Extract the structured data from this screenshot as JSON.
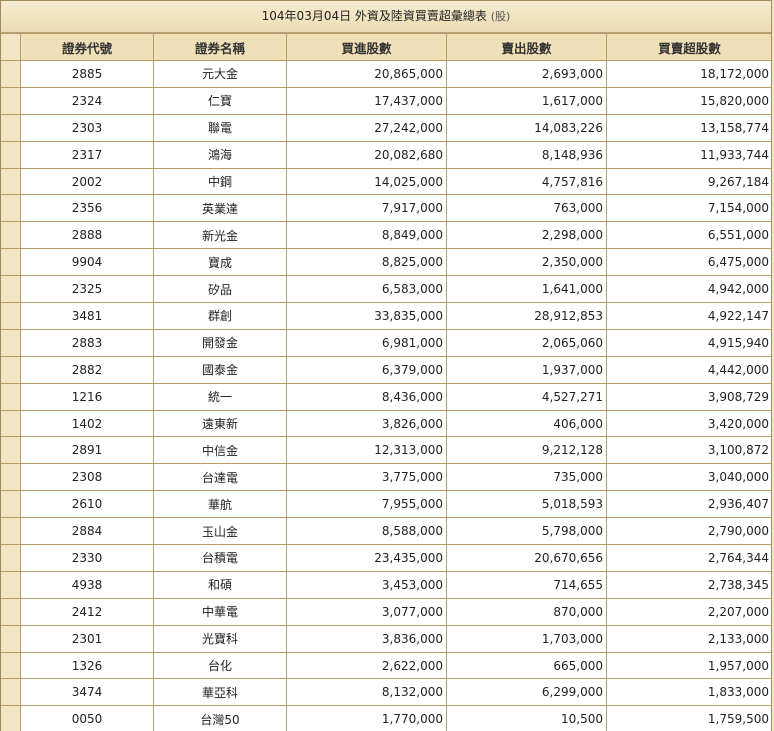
{
  "title": {
    "text": "104年03月04日 外資及陸資買賣超彙總表",
    "unit": "(股)"
  },
  "headers": [
    "證券代號",
    "證券名稱",
    "買進股數",
    "賣出股數",
    "買賣超股數"
  ],
  "rows": [
    {
      "code": "2885",
      "name": "元大金",
      "buy": "20,865,000",
      "sell": "2,693,000",
      "net": "18,172,000"
    },
    {
      "code": "2324",
      "name": "仁寶",
      "buy": "17,437,000",
      "sell": "1,617,000",
      "net": "15,820,000"
    },
    {
      "code": "2303",
      "name": "聯電",
      "buy": "27,242,000",
      "sell": "14,083,226",
      "net": "13,158,774"
    },
    {
      "code": "2317",
      "name": "鴻海",
      "buy": "20,082,680",
      "sell": "8,148,936",
      "net": "11,933,744"
    },
    {
      "code": "2002",
      "name": "中鋼",
      "buy": "14,025,000",
      "sell": "4,757,816",
      "net": "9,267,184"
    },
    {
      "code": "2356",
      "name": "英業達",
      "buy": "7,917,000",
      "sell": "763,000",
      "net": "7,154,000"
    },
    {
      "code": "2888",
      "name": "新光金",
      "buy": "8,849,000",
      "sell": "2,298,000",
      "net": "6,551,000"
    },
    {
      "code": "9904",
      "name": "寶成",
      "buy": "8,825,000",
      "sell": "2,350,000",
      "net": "6,475,000"
    },
    {
      "code": "2325",
      "name": "矽品",
      "buy": "6,583,000",
      "sell": "1,641,000",
      "net": "4,942,000"
    },
    {
      "code": "3481",
      "name": "群創",
      "buy": "33,835,000",
      "sell": "28,912,853",
      "net": "4,922,147"
    },
    {
      "code": "2883",
      "name": "開發金",
      "buy": "6,981,000",
      "sell": "2,065,060",
      "net": "4,915,940"
    },
    {
      "code": "2882",
      "name": "國泰金",
      "buy": "6,379,000",
      "sell": "1,937,000",
      "net": "4,442,000"
    },
    {
      "code": "1216",
      "name": "統一",
      "buy": "8,436,000",
      "sell": "4,527,271",
      "net": "3,908,729"
    },
    {
      "code": "1402",
      "name": "遠東新",
      "buy": "3,826,000",
      "sell": "406,000",
      "net": "3,420,000"
    },
    {
      "code": "2891",
      "name": "中信金",
      "buy": "12,313,000",
      "sell": "9,212,128",
      "net": "3,100,872"
    },
    {
      "code": "2308",
      "name": "台達電",
      "buy": "3,775,000",
      "sell": "735,000",
      "net": "3,040,000"
    },
    {
      "code": "2610",
      "name": "華航",
      "buy": "7,955,000",
      "sell": "5,018,593",
      "net": "2,936,407"
    },
    {
      "code": "2884",
      "name": "玉山金",
      "buy": "8,588,000",
      "sell": "5,798,000",
      "net": "2,790,000"
    },
    {
      "code": "2330",
      "name": "台積電",
      "buy": "23,435,000",
      "sell": "20,670,656",
      "net": "2,764,344"
    },
    {
      "code": "4938",
      "name": "和碩",
      "buy": "3,453,000",
      "sell": "714,655",
      "net": "2,738,345"
    },
    {
      "code": "2412",
      "name": "中華電",
      "buy": "3,077,000",
      "sell": "870,000",
      "net": "2,207,000"
    },
    {
      "code": "2301",
      "name": "光寶科",
      "buy": "3,836,000",
      "sell": "1,703,000",
      "net": "2,133,000"
    },
    {
      "code": "1326",
      "name": "台化",
      "buy": "2,622,000",
      "sell": "665,000",
      "net": "1,957,000"
    },
    {
      "code": "3474",
      "name": "華亞科",
      "buy": "8,132,000",
      "sell": "6,299,000",
      "net": "1,833,000"
    },
    {
      "code": "0050",
      "name": "台灣50",
      "buy": "1,770,000",
      "sell": "10,500",
      "net": "1,759,500"
    }
  ]
}
